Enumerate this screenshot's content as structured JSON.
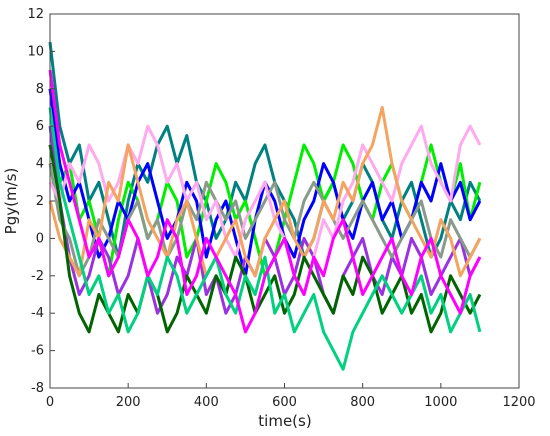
{
  "chart_data": {
    "type": "line",
    "xlabel": "time(s)",
    "ylabel": "Pgy(m/s)",
    "xlim": [
      0,
      1200
    ],
    "xticks": [
      0,
      200,
      400,
      600,
      800,
      1000,
      1200
    ],
    "ylim": [
      -8,
      12
    ],
    "yticks": [
      -8,
      -6,
      -4,
      -2,
      0,
      2,
      4,
      6,
      8,
      10,
      12
    ],
    "x": [
      0,
      25,
      50,
      75,
      100,
      125,
      150,
      175,
      200,
      225,
      250,
      275,
      300,
      325,
      350,
      375,
      400,
      425,
      450,
      475,
      500,
      525,
      550,
      575,
      600,
      625,
      650,
      675,
      700,
      725,
      750,
      775,
      800,
      825,
      850,
      875,
      900,
      925,
      950,
      975,
      1000,
      1025,
      1050,
      1075,
      1100
    ],
    "series": [
      {
        "color": "#008080",
        "values": [
          10.5,
          6,
          4,
          5,
          2,
          3,
          1,
          -1,
          2,
          4,
          3,
          5,
          6,
          4,
          5.5,
          3,
          2,
          0,
          1,
          3,
          2,
          4,
          5,
          3,
          2,
          1,
          -1,
          0,
          2,
          3,
          1,
          2,
          4,
          3,
          1,
          0,
          2,
          3,
          1,
          -1,
          0,
          2,
          1,
          3,
          2
        ]
      },
      {
        "color": "#00ee00",
        "values": [
          5,
          3,
          4,
          1,
          2,
          0,
          -2,
          1,
          3,
          2,
          0,
          1,
          3,
          2,
          -1,
          0,
          2,
          4,
          3,
          1,
          2,
          0,
          -2,
          -1,
          1,
          3,
          5,
          4,
          2,
          3,
          5,
          4,
          2,
          1,
          3,
          4,
          2,
          1,
          3,
          5,
          3,
          2,
          4,
          1,
          3
        ]
      },
      {
        "color": "#0000ff",
        "values": [
          8,
          4,
          2,
          3,
          1,
          -1,
          0,
          2,
          1,
          3,
          4,
          2,
          0,
          1,
          3,
          2,
          -1,
          1,
          2,
          0,
          -2,
          1,
          3,
          2,
          0,
          -1,
          1,
          2,
          4,
          3,
          1,
          0,
          2,
          3,
          1,
          2,
          0,
          1,
          3,
          2,
          4,
          2,
          3,
          1,
          2
        ]
      },
      {
        "color": "#9a32e0",
        "values": [
          6,
          2,
          -1,
          -3,
          -2,
          0,
          -1,
          -3,
          -2,
          0,
          -2,
          -4,
          -3,
          -1,
          -2,
          0,
          -3,
          -2,
          -4,
          -3,
          -1,
          -2,
          0,
          -1,
          -3,
          -2,
          0,
          -1,
          -3,
          -4,
          -2,
          -1,
          0,
          -2,
          -3,
          -1,
          -2,
          0,
          -1,
          -3,
          -2,
          -1,
          0,
          -2,
          -1
        ]
      },
      {
        "color": "#8a9a8a",
        "values": [
          4,
          1,
          0,
          -2,
          -1,
          1,
          0,
          -1,
          1,
          2,
          0,
          1,
          -1,
          0,
          2,
          1,
          3,
          2,
          1,
          2,
          0,
          1,
          2,
          3,
          1,
          0,
          2,
          3,
          2,
          1,
          0,
          1,
          2,
          1,
          0,
          -1,
          0,
          1,
          2,
          0,
          -1,
          1,
          0,
          -1,
          0
        ]
      },
      {
        "color": "#ffaaee",
        "values": [
          3,
          2,
          4,
          3,
          5,
          4,
          2,
          3,
          5,
          4,
          6,
          5,
          3,
          4,
          2,
          3,
          1,
          2,
          0,
          -1,
          1,
          2,
          3,
          1,
          0,
          -2,
          -3,
          -1,
          1,
          0,
          2,
          3,
          5,
          4,
          3,
          2,
          4,
          5,
          6,
          4,
          3,
          2,
          5,
          6,
          5
        ]
      },
      {
        "color": "#f4a460",
        "values": [
          2,
          0,
          -1,
          -2,
          1,
          0,
          3,
          2,
          5,
          3,
          1,
          0,
          -1,
          1,
          2,
          0,
          -2,
          -1,
          0,
          1,
          -1,
          -2,
          0,
          1,
          2,
          0,
          -1,
          0,
          2,
          1,
          3,
          2,
          4,
          5,
          7,
          4,
          2,
          1,
          0,
          -1,
          1,
          0,
          -2,
          -1,
          0
        ]
      },
      {
        "color": "#006400",
        "values": [
          5,
          2,
          -2,
          -4,
          -5,
          -3,
          -4,
          -5,
          -3,
          -4,
          -2,
          -3,
          -5,
          -4,
          -2,
          -3,
          -4,
          -2,
          -3,
          -1,
          -2,
          -4,
          -3,
          -2,
          -4,
          -3,
          -1,
          -2,
          -3,
          -4,
          -2,
          -3,
          -1,
          -2,
          -4,
          -3,
          -2,
          -4,
          -3,
          -5,
          -4,
          -2,
          -3,
          -4,
          -3
        ]
      },
      {
        "color": "#00d080",
        "values": [
          7,
          3,
          1,
          -1,
          -3,
          -2,
          -4,
          -3,
          -5,
          -4,
          -2,
          -3,
          -1,
          -2,
          -4,
          -3,
          -2,
          -1,
          -3,
          -4,
          -2,
          -3,
          -1,
          -4,
          -3,
          -5,
          -4,
          -3,
          -5,
          -6,
          -7,
          -5,
          -4,
          -3,
          -2,
          -3,
          -4,
          -3,
          -2,
          -4,
          -3,
          -5,
          -4,
          -3,
          -5
        ]
      },
      {
        "color": "#ff00ff",
        "values": [
          9,
          5,
          3,
          1,
          -1,
          0,
          -2,
          -1,
          1,
          0,
          -2,
          -1,
          1,
          0,
          -3,
          -2,
          0,
          -1,
          -2,
          -3,
          -5,
          -4,
          -2,
          -1,
          0,
          -2,
          -3,
          -1,
          -2,
          0,
          1,
          -1,
          -3,
          -2,
          -1,
          0,
          -2,
          -3,
          -1,
          0,
          -2,
          -3,
          -4,
          -2,
          -1
        ]
      }
    ]
  }
}
